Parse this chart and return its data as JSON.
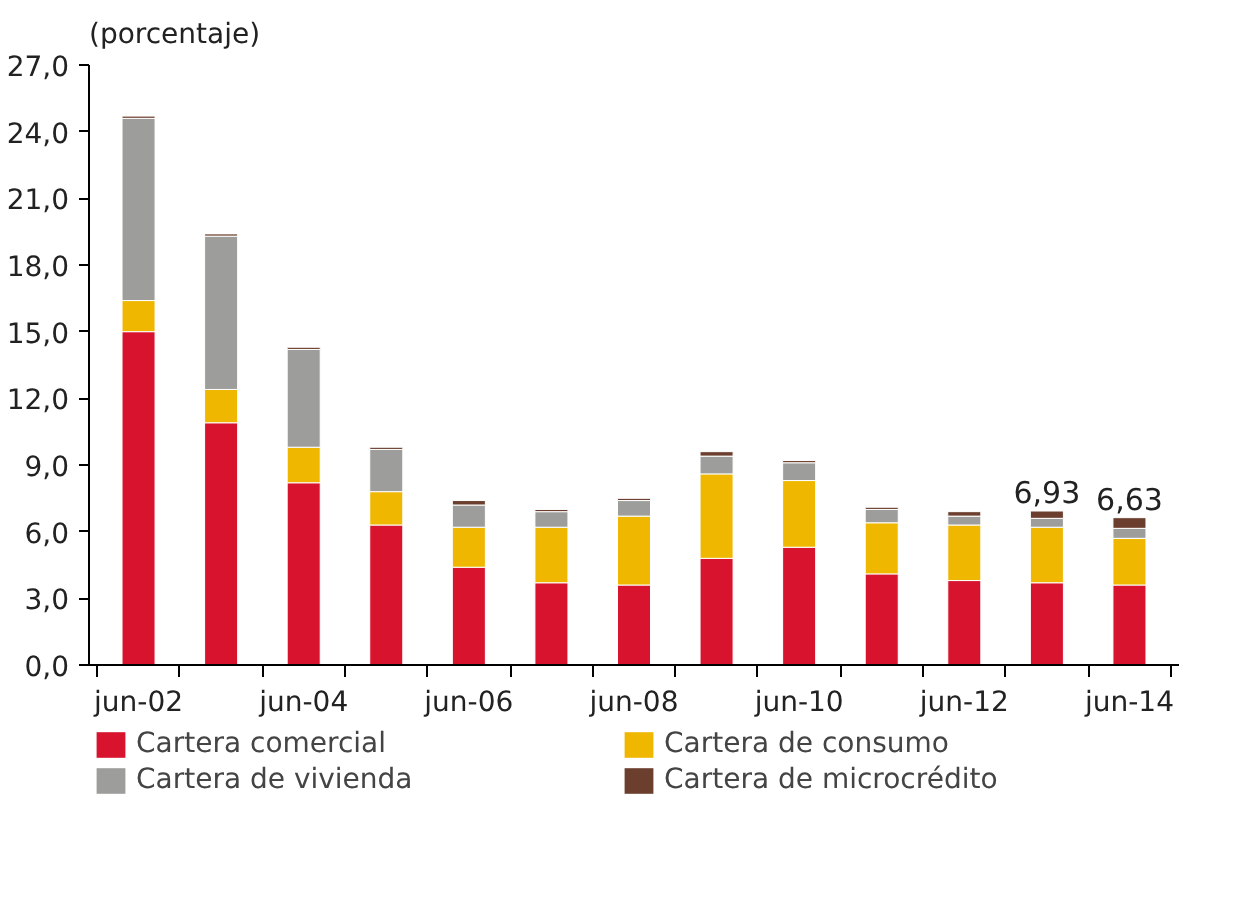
{
  "chart_data": {
    "type": "bar",
    "stacked": true,
    "ylabel": "(porcentaje)",
    "categories": [
      "jun-02",
      null,
      "jun-04",
      null,
      "jun-06",
      null,
      "jun-08",
      null,
      "jun-10",
      null,
      "jun-12",
      null,
      "jun-14"
    ],
    "series": [
      {
        "name": "Cartera comercial",
        "color": "#d7132e",
        "values": [
          15.0,
          10.9,
          8.2,
          6.3,
          4.4,
          3.7,
          3.6,
          4.8,
          5.3,
          4.1,
          3.8,
          3.7,
          3.6
        ]
      },
      {
        "name": "Cartera de consumo",
        "color": "#efb700",
        "values": [
          1.4,
          1.5,
          1.6,
          1.5,
          1.8,
          2.5,
          3.1,
          3.8,
          3.0,
          2.3,
          2.5,
          2.5,
          2.1
        ]
      },
      {
        "name": "Cartera de vivienda",
        "color": "#9d9d9b",
        "values": [
          8.2,
          6.9,
          4.4,
          1.9,
          1.0,
          0.7,
          0.7,
          0.8,
          0.8,
          0.6,
          0.4,
          0.4,
          0.45
        ]
      },
      {
        "name": "Cartera de microcrédito",
        "color": "#6b3e2e",
        "values": [
          0.1,
          0.1,
          0.1,
          0.1,
          0.2,
          0.1,
          0.1,
          0.2,
          0.1,
          0.1,
          0.2,
          0.33,
          0.48
        ]
      }
    ],
    "totals": [
      null,
      null,
      null,
      null,
      null,
      null,
      null,
      null,
      null,
      null,
      null,
      "6,93",
      "6,63"
    ],
    "ylim": [
      0,
      27
    ],
    "yticks": [
      {
        "value": 0,
        "label": "0,0"
      },
      {
        "value": 3,
        "label": "3,0"
      },
      {
        "value": 6,
        "label": "6,0"
      },
      {
        "value": 9,
        "label": "9,0"
      },
      {
        "value": 12,
        "label": "12,0"
      },
      {
        "value": 15,
        "label": "15,0"
      },
      {
        "value": 18,
        "label": "18,0"
      },
      {
        "value": 21,
        "label": "21,0"
      },
      {
        "value": 24,
        "label": "24,0"
      },
      {
        "value": 27,
        "label": "27,0"
      }
    ],
    "grid": false,
    "legend": "bottom"
  }
}
